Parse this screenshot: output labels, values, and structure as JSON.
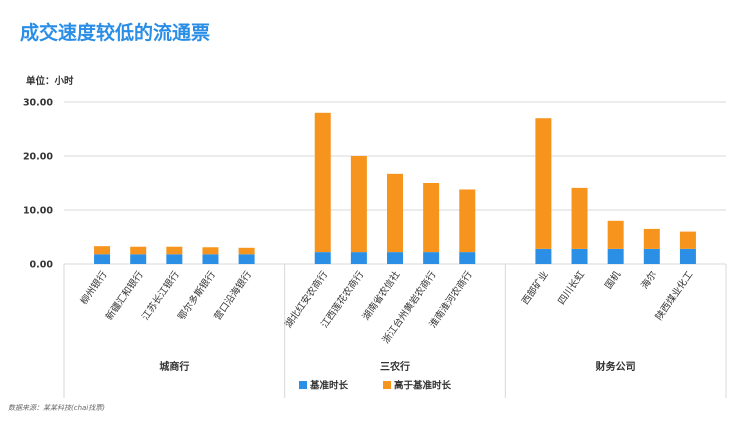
{
  "title": "成交速度较低的流通票",
  "unit_label": "单位：小时",
  "source": "数据来源：某某科技(chai找票)",
  "colors": {
    "base": "#2b8fe6",
    "extra": "#f7941d",
    "grid": "#d9d9d9",
    "title": "#2a8ee6"
  },
  "chart_data": {
    "type": "bar",
    "stacked": true,
    "ylim": [
      0,
      30
    ],
    "yticks": [
      "0.00",
      "10.00",
      "20.00",
      "30.00"
    ],
    "grid": true,
    "legend_position": "bottom",
    "groups": [
      {
        "name": "城商行",
        "categories": [
          "柳州银行",
          "新疆汇和银行",
          "江苏长江银行",
          "鄂尔多斯银行",
          "营口沿海银行"
        ]
      },
      {
        "name": "三农行",
        "categories": [
          "湖北红安农商行",
          "江西莲花农商行",
          "湖南省农信社",
          "浙江台州黄岩农商行",
          "淮南淮河农商行"
        ]
      },
      {
        "name": "财务公司",
        "categories": [
          "西部矿业",
          "四川长虹",
          "国机",
          "海尔",
          "陕西煤业化工"
        ]
      }
    ],
    "series": [
      {
        "name": "基准时长",
        "values": [
          1.8,
          1.8,
          1.8,
          1.8,
          1.8,
          2.2,
          2.2,
          2.2,
          2.2,
          2.2,
          2.8,
          2.8,
          2.8,
          2.8,
          2.8
        ]
      },
      {
        "name": "高于基准时长",
        "values": [
          1.5,
          1.4,
          1.4,
          1.3,
          1.2,
          25.8,
          17.8,
          14.5,
          12.8,
          11.6,
          24.2,
          11.3,
          5.2,
          3.7,
          3.2
        ]
      }
    ]
  }
}
